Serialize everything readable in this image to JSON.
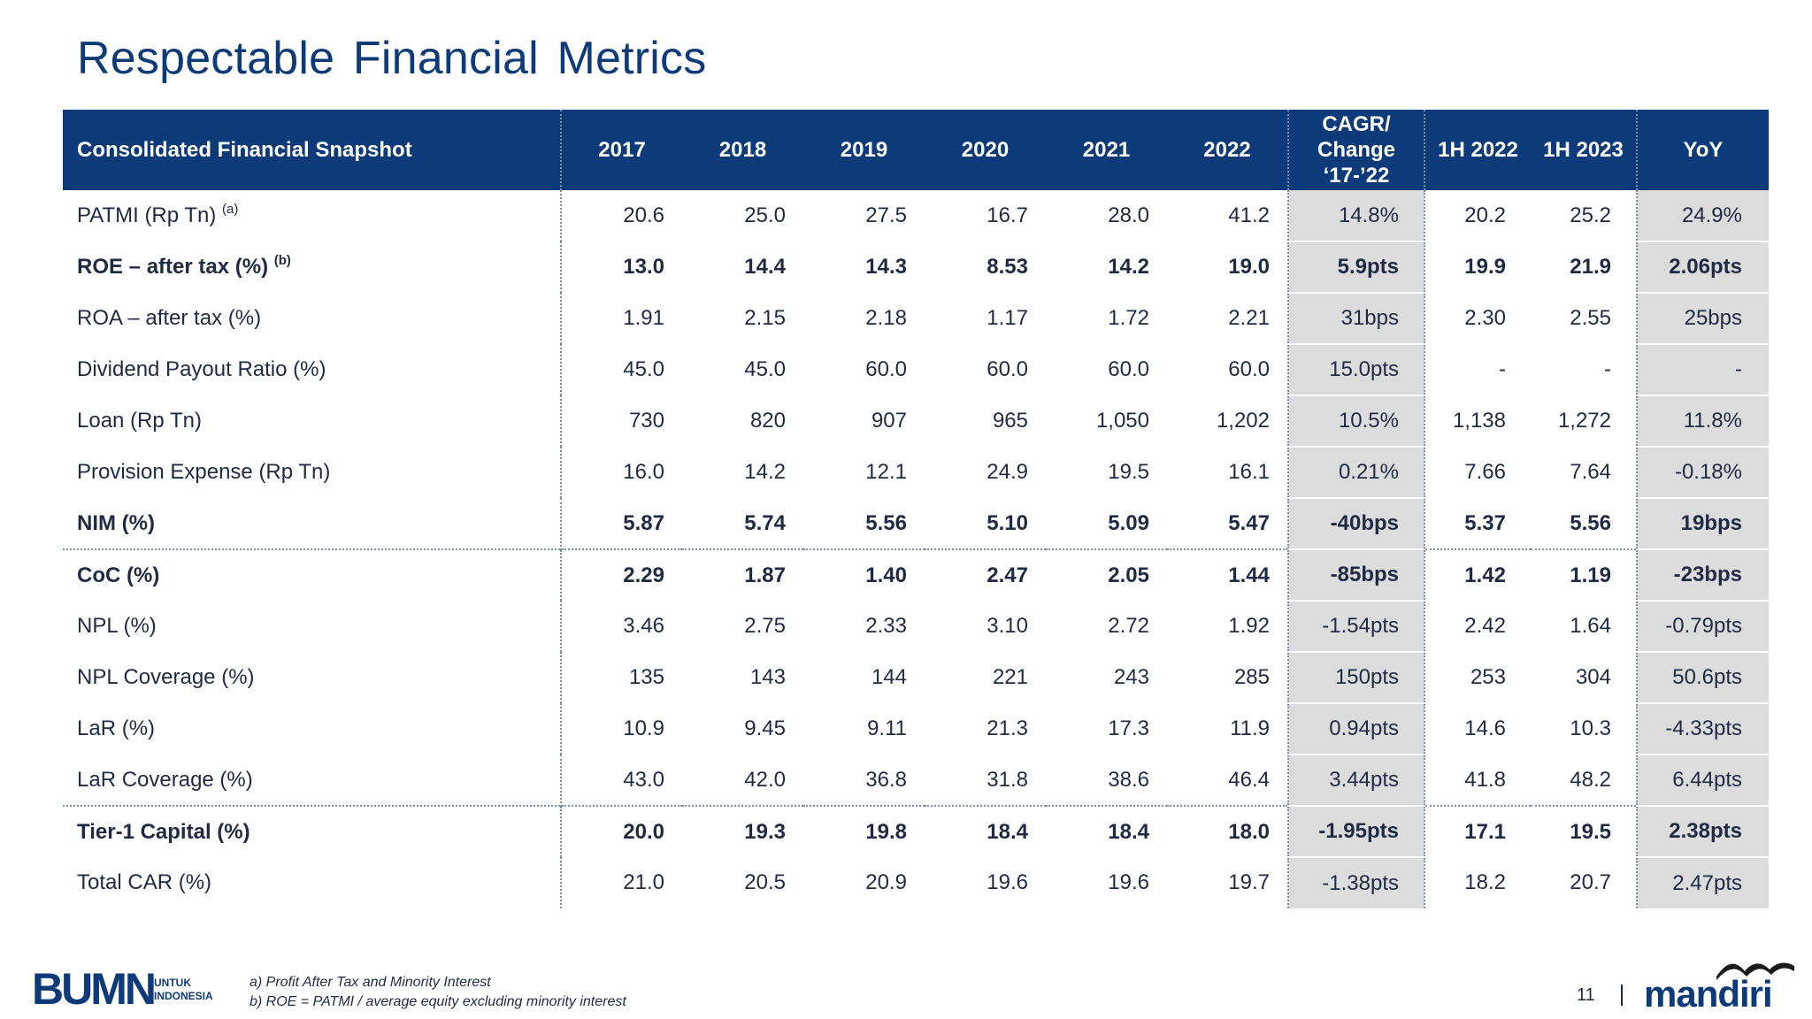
{
  "title": "Respectable Financial Metrics",
  "table": {
    "headers": [
      "Consolidated Financial Snapshot",
      "2017",
      "2018",
      "2019",
      "2020",
      "2021",
      "2022",
      "CAGR/\nChange\n‘17-’22",
      "1H 2022",
      "1H 2023",
      "YoY"
    ],
    "cagr_lines": [
      "CAGR/",
      "Change",
      "‘17-’22"
    ],
    "rows": [
      {
        "label": "PATMI (Rp Tn)",
        "sup": "(a)",
        "values": [
          "20.6",
          "25.0",
          "27.5",
          "16.7",
          "28.0",
          "41.2",
          "14.8%",
          "20.2",
          "25.2",
          "24.9%"
        ]
      },
      {
        "label": "ROE – after tax (%)",
        "sup": "(b)",
        "values": [
          "13.0",
          "14.4",
          "14.3",
          "8.53",
          "14.2",
          "19.0",
          "5.9pts",
          "19.9",
          "21.9",
          "2.06pts"
        ]
      },
      {
        "label": "ROA – after tax (%)",
        "values": [
          "1.91",
          "2.15",
          "2.18",
          "1.17",
          "1.72",
          "2.21",
          "31bps",
          "2.30",
          "2.55",
          "25bps"
        ]
      },
      {
        "label": "Dividend Payout Ratio (%)",
        "values": [
          "45.0",
          "45.0",
          "60.0",
          "60.0",
          "60.0",
          "60.0",
          "15.0pts",
          "-",
          "-",
          "-"
        ]
      },
      {
        "label": "Loan (Rp Tn)",
        "values": [
          "730",
          "820",
          "907",
          "965",
          "1,050",
          "1,202",
          "10.5%",
          "1,138",
          "1,272",
          "11.8%"
        ]
      },
      {
        "label": "Provision Expense (Rp Tn)",
        "values": [
          "16.0",
          "14.2",
          "12.1",
          "24.9",
          "19.5",
          "16.1",
          "0.21%",
          "7.66",
          "7.64",
          "-0.18%"
        ]
      },
      {
        "label": "NIM (%)",
        "values": [
          "5.87",
          "5.74",
          "5.56",
          "5.10",
          "5.09",
          "5.47",
          "-40bps",
          "5.37",
          "5.56",
          "19bps"
        ]
      },
      {
        "label": "CoC (%)",
        "values": [
          "2.29",
          "1.87",
          "1.40",
          "2.47",
          "2.05",
          "1.44",
          "-85bps",
          "1.42",
          "1.19",
          "-23bps"
        ]
      },
      {
        "label": "NPL (%)",
        "values": [
          "3.46",
          "2.75",
          "2.33",
          "3.10",
          "2.72",
          "1.92",
          "-1.54pts",
          "2.42",
          "1.64",
          "-0.79pts"
        ]
      },
      {
        "label": "NPL Coverage (%)",
        "values": [
          "135",
          "143",
          "144",
          "221",
          "243",
          "285",
          "150pts",
          "253",
          "304",
          "50.6pts"
        ]
      },
      {
        "label": "LaR (%)",
        "values": [
          "10.9",
          "9.45",
          "9.11",
          "21.3",
          "17.3",
          "11.9",
          "0.94pts",
          "14.6",
          "10.3",
          "-4.33pts"
        ]
      },
      {
        "label": "LaR Coverage (%)",
        "values": [
          "43.0",
          "42.0",
          "36.8",
          "31.8",
          "38.6",
          "46.4",
          "3.44pts",
          "41.8",
          "48.2",
          "6.44pts"
        ]
      },
      {
        "label": "Tier-1 Capital (%)",
        "values": [
          "20.0",
          "19.3",
          "19.8",
          "18.4",
          "18.4",
          "18.0",
          "-1.95pts",
          "17.1",
          "19.5",
          "2.38pts"
        ]
      },
      {
        "label": "Total CAR (%)",
        "values": [
          "21.0",
          "20.5",
          "20.9",
          "19.6",
          "19.6",
          "19.7",
          "-1.38pts",
          "18.2",
          "20.7",
          "2.47pts"
        ]
      }
    ]
  },
  "footnotes": {
    "a": "a) Profit After Tax and Minority Interest",
    "b": "b) ROE = PATMI / average equity excluding minority interest"
  },
  "logos": {
    "bumn": "BUMN",
    "bumn_sub_1": "UNTUK",
    "bumn_sub_2": "INDONESIA",
    "mandiri": "mandiri"
  },
  "page_number": "11",
  "colors": {
    "header_bg": "#0d3b7a",
    "shade": "#dcdcdc",
    "title": "#0d3b7a"
  }
}
